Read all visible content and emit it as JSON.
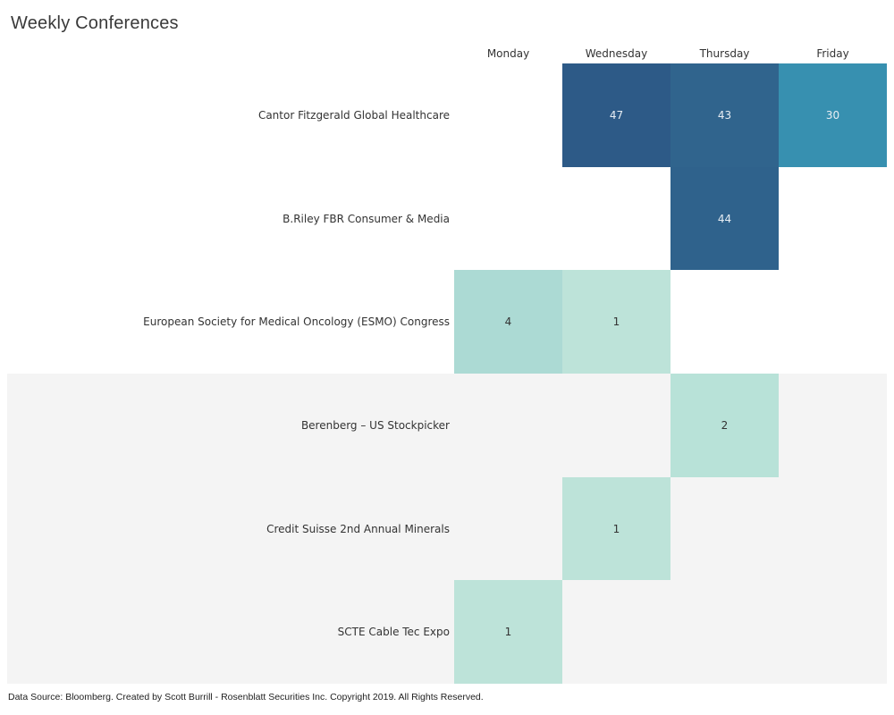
{
  "title": "Weekly Conferences",
  "footer": "Data Source: Bloomberg. Created by Scott Burrill - Rosenblatt Securities Inc. Copyright 2019. All Rights Reserved.",
  "chart_data": {
    "type": "heatmap",
    "title": "Weekly Conferences",
    "xlabel": "",
    "ylabel": "",
    "x_categories": [
      "Monday",
      "Wednesday",
      "Thursday",
      "Friday"
    ],
    "y_categories": [
      "Cantor Fitzgerald Global Healthcare",
      "B.Riley FBR Consumer & Media",
      "European Society for Medical Oncology (ESMO) Congress",
      "Berenberg – US Stockpicker",
      "Credit Suisse 2nd Annual Minerals",
      "SCTE Cable Tec Expo"
    ],
    "values": [
      [
        null,
        47,
        43,
        30
      ],
      [
        null,
        null,
        44,
        null
      ],
      [
        4,
        1,
        null,
        null
      ],
      [
        null,
        null,
        2,
        null
      ],
      [
        null,
        1,
        null,
        null
      ],
      [
        1,
        null,
        null,
        null
      ]
    ],
    "color_scale": {
      "low": "#bde3d9",
      "mid": "#3790b0",
      "high": "#2d5a87"
    },
    "banded_rows_from": 3,
    "legend": "none"
  },
  "colors": {
    "cell_47": "#2d5a87",
    "cell_44": "#2f628c",
    "cell_43": "#30648d",
    "cell_30": "#3790b0",
    "cell_4": "#acdad4",
    "cell_2": "#b8e2d8",
    "cell_1": "#bde3d9",
    "band": "#f4f4f4"
  }
}
